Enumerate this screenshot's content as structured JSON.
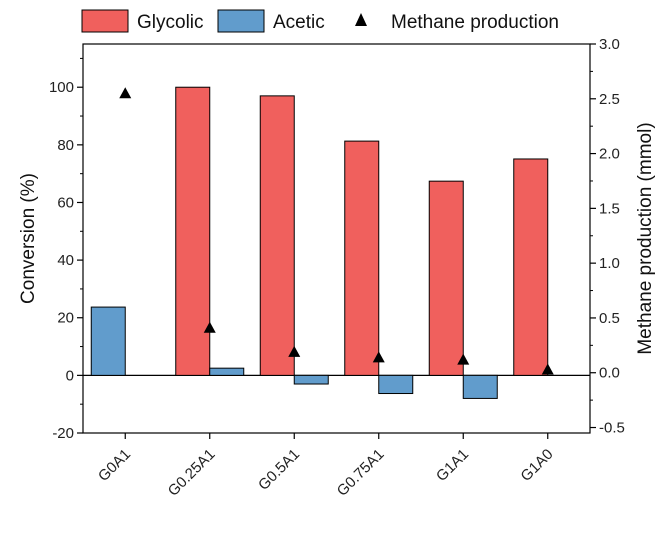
{
  "chart_data": {
    "type": "bar",
    "categories": [
      "G0A1",
      "G0.25A1",
      "G0.5A1",
      "G0.75A1",
      "G1A1",
      "G1A0"
    ],
    "series": [
      {
        "name": "Glycolic",
        "kind": "bar",
        "axis": "left",
        "color": "#f0605d",
        "values": [
          null,
          100,
          97,
          81.3,
          67.4,
          75.1
        ]
      },
      {
        "name": "Acetic",
        "kind": "bar",
        "axis": "left",
        "color": "#619ccc",
        "values": [
          23.7,
          2.5,
          -3,
          -6.3,
          -8,
          null
        ]
      },
      {
        "name": "Methane production",
        "kind": "scatter",
        "marker": "triangle",
        "axis": "right",
        "color": "#000000",
        "values": [
          2.55,
          0.41,
          0.19,
          0.14,
          0.12,
          0.03
        ]
      }
    ],
    "ylabel": "Conversion (%)",
    "y2label": "Methane production (mmol)",
    "ylim": [
      -20,
      115
    ],
    "y2lim": [
      -0.55,
      3.0
    ],
    "yticks": [
      -20,
      0,
      20,
      40,
      60,
      80,
      100
    ],
    "y2ticks": [
      -0.5,
      0.0,
      0.5,
      1.0,
      1.5,
      2.0,
      2.5,
      3.0
    ],
    "y2tick_labels": [
      "-0.5",
      "0.0",
      "0.5",
      "1.0",
      "1.5",
      "2.0",
      "2.5",
      "3.0"
    ],
    "legend_position": "top",
    "grid": false
  }
}
